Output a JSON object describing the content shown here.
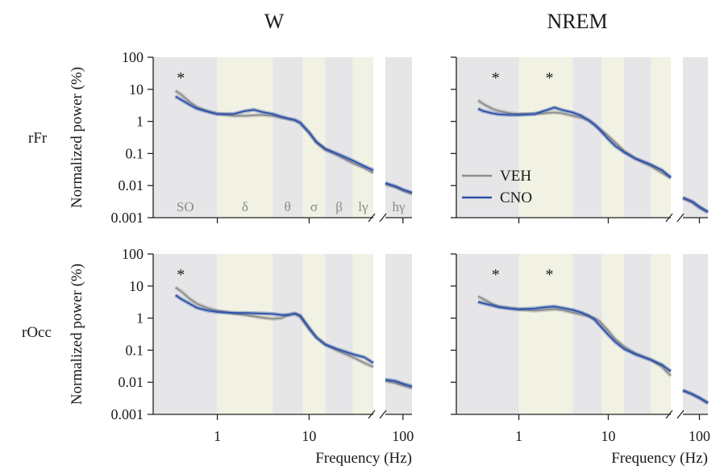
{
  "chart_data": {
    "type": "line",
    "columns": [
      "W",
      "NREM"
    ],
    "rows": [
      "rFr",
      "rOcc"
    ],
    "ylabel": "Normalized power (%)",
    "xlabel": "Frequency (Hz)",
    "scale": "log-log",
    "ylim": [
      0.001,
      100
    ],
    "xlim_main": [
      0.2,
      50
    ],
    "xlim_inset": [
      60,
      130
    ],
    "y_ticks": [
      "100",
      "10",
      "1",
      "0.1",
      "0.01",
      "0.001"
    ],
    "x_ticks": [
      "1",
      "10",
      "100"
    ],
    "bands": [
      {
        "label": "SO",
        "from": 0.2,
        "to": 1,
        "color": "#e6e6e8"
      },
      {
        "label": "δ",
        "from": 1,
        "to": 4,
        "color": "#f1f2e3"
      },
      {
        "label": "θ",
        "from": 4,
        "to": 8.5,
        "color": "#e6e6e8"
      },
      {
        "label": "σ",
        "from": 8.5,
        "to": 15,
        "color": "#f1f2e3"
      },
      {
        "label": "β",
        "from": 15,
        "to": 30,
        "color": "#e6e6e8"
      },
      {
        "label": "lγ",
        "from": 30,
        "to": 50,
        "color": "#f1f2e3"
      },
      {
        "label": "hγ",
        "from": 60,
        "to": 130,
        "color": "#e6e6e8"
      }
    ],
    "legend": [
      {
        "name": "VEH",
        "color": "#8c8c8c"
      },
      {
        "name": "CNO",
        "color": "#2a4fa6"
      }
    ],
    "legend_location": "W-NREM rFr panel, lower left",
    "significance_marker": "*",
    "panels": [
      {
        "id": "W-rFr",
        "stars_at_hz": [
          0.4
        ],
        "series": [
          {
            "name": "VEH",
            "x": [
              0.35,
              0.4,
              0.5,
              0.6,
              0.8,
              1,
              1.5,
              2,
              3,
              4,
              5,
              6,
              7,
              8,
              10,
              12,
              15,
              20,
              30,
              40,
              50,
              60,
              80,
              100,
              130
            ],
            "y": [
              9,
              7,
              4,
              2.8,
              2,
              1.7,
              1.5,
              1.5,
              1.6,
              1.5,
              1.3,
              1.2,
              1.1,
              0.9,
              0.45,
              0.22,
              0.13,
              0.09,
              0.05,
              0.035,
              0.025,
              0.011,
              0.009,
              0.007,
              0.0055
            ]
          },
          {
            "name": "CNO",
            "x": [
              0.35,
              0.4,
              0.5,
              0.6,
              0.8,
              1,
              1.5,
              2,
              2.5,
              3,
              4,
              5,
              6,
              7,
              8,
              10,
              12,
              15,
              20,
              30,
              40,
              50,
              60,
              80,
              100,
              130
            ],
            "y": [
              6,
              4.8,
              3.3,
              2.5,
              2,
              1.7,
              1.7,
              2.1,
              2.3,
              2,
              1.7,
              1.4,
              1.2,
              1.1,
              0.9,
              0.45,
              0.23,
              0.14,
              0.1,
              0.06,
              0.04,
              0.03,
              0.012,
              0.0095,
              0.0075,
              0.006
            ]
          }
        ]
      },
      {
        "id": "NREM-rFr",
        "stars_at_hz": [
          0.55,
          2.2
        ],
        "series": [
          {
            "name": "VEH",
            "x": [
              0.35,
              0.4,
              0.5,
              0.6,
              0.8,
              1,
              1.5,
              2,
              2.5,
              3,
              4,
              5,
              6,
              7,
              8,
              10,
              12,
              15,
              20,
              30,
              40,
              50,
              60,
              80,
              100,
              130
            ],
            "y": [
              4.5,
              3.5,
              2.5,
              2.1,
              1.8,
              1.7,
              1.7,
              1.8,
              1.9,
              1.8,
              1.5,
              1.3,
              1.1,
              0.8,
              0.6,
              0.35,
              0.22,
              0.12,
              0.07,
              0.04,
              0.025,
              0.017,
              0.004,
              0.003,
              0.002,
              0.0015
            ]
          },
          {
            "name": "CNO",
            "x": [
              0.35,
              0.4,
              0.5,
              0.6,
              0.8,
              1,
              1.5,
              2,
              2.5,
              3,
              4,
              5,
              6,
              7,
              8,
              10,
              12,
              15,
              20,
              30,
              40,
              50,
              60,
              80,
              100,
              130
            ],
            "y": [
              2.5,
              2.1,
              1.8,
              1.65,
              1.6,
              1.6,
              1.7,
              2.2,
              2.7,
              2.3,
              1.9,
              1.5,
              1.1,
              0.8,
              0.55,
              0.28,
              0.17,
              0.11,
              0.07,
              0.045,
              0.03,
              0.018,
              0.0042,
              0.0032,
              0.0022,
              0.0015
            ]
          }
        ]
      },
      {
        "id": "W-rOcc",
        "stars_at_hz": [
          0.4
        ],
        "series": [
          {
            "name": "VEH",
            "x": [
              0.35,
              0.4,
              0.5,
              0.6,
              0.8,
              1,
              1.5,
              2,
              3,
              4,
              5,
              6,
              7,
              8,
              10,
              12,
              15,
              20,
              30,
              40,
              50,
              60,
              80,
              100,
              130
            ],
            "y": [
              9,
              7,
              4,
              2.8,
              2,
              1.7,
              1.4,
              1.25,
              1.05,
              0.95,
              1,
              1.3,
              1.35,
              1.1,
              0.45,
              0.25,
              0.15,
              0.1,
              0.06,
              0.04,
              0.03,
              0.011,
              0.0095,
              0.008,
              0.0065
            ]
          },
          {
            "name": "CNO",
            "x": [
              0.35,
              0.4,
              0.5,
              0.6,
              0.8,
              1,
              1.5,
              2,
              3,
              4,
              5,
              6,
              7,
              8,
              10,
              12,
              15,
              20,
              30,
              40,
              50,
              60,
              80,
              100,
              130
            ],
            "y": [
              5.2,
              4,
              2.8,
              2.1,
              1.7,
              1.55,
              1.45,
              1.45,
              1.4,
              1.35,
              1.25,
              1.25,
              1.4,
              1.2,
              0.5,
              0.25,
              0.15,
              0.11,
              0.075,
              0.06,
              0.04,
              0.012,
              0.011,
              0.009,
              0.0075
            ]
          }
        ]
      },
      {
        "id": "NREM-rOcc",
        "stars_at_hz": [
          0.55,
          2.2
        ],
        "series": [
          {
            "name": "VEH",
            "x": [
              0.35,
              0.4,
              0.5,
              0.6,
              0.8,
              1,
              1.5,
              2,
              2.5,
              3,
              4,
              5,
              6,
              7,
              8,
              10,
              12,
              15,
              20,
              30,
              40,
              50,
              60,
              80,
              100,
              130
            ],
            "y": [
              4.8,
              3.9,
              2.8,
              2.3,
              2,
              1.85,
              1.7,
              1.8,
              1.9,
              1.8,
              1.5,
              1.3,
              1.15,
              1,
              0.8,
              0.4,
              0.22,
              0.13,
              0.08,
              0.05,
              0.03,
              0.016,
              0.0055,
              0.0042,
              0.0032,
              0.0022
            ]
          },
          {
            "name": "CNO",
            "x": [
              0.35,
              0.4,
              0.5,
              0.6,
              0.8,
              1,
              1.5,
              2,
              2.5,
              3,
              4,
              5,
              6,
              7,
              8,
              10,
              12,
              15,
              20,
              30,
              40,
              50,
              60,
              80,
              100,
              130
            ],
            "y": [
              3.2,
              2.9,
              2.5,
              2.2,
              2,
              1.9,
              2,
              2.2,
              2.3,
              2.1,
              1.8,
              1.5,
              1.2,
              0.9,
              0.6,
              0.3,
              0.18,
              0.11,
              0.075,
              0.05,
              0.035,
              0.022,
              0.0056,
              0.0043,
              0.0033,
              0.0023
            ]
          }
        ]
      }
    ]
  }
}
